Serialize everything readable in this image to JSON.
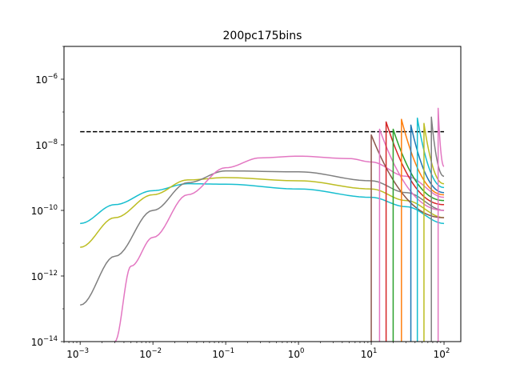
{
  "chart_data": {
    "type": "line",
    "title": "200pc175bins",
    "xlabel": "",
    "ylabel": "",
    "xscale": "log",
    "yscale": "log",
    "xlim": [
      0.0006,
      170
    ],
    "ylim": [
      1e-14,
      1e-05
    ],
    "grid": false,
    "legend": "none",
    "x_ticks": [
      {
        "value": 0.001,
        "base": "10",
        "exp": "−3"
      },
      {
        "value": 0.01,
        "base": "10",
        "exp": "−2"
      },
      {
        "value": 0.1,
        "base": "10",
        "exp": "−1"
      },
      {
        "value": 1,
        "base": "10",
        "exp": "0"
      },
      {
        "value": 10,
        "base": "10",
        "exp": "1"
      },
      {
        "value": 100,
        "base": "10",
        "exp": "2"
      }
    ],
    "y_ticks": [
      {
        "value": 1e-14,
        "base": "10",
        "exp": "−14"
      },
      {
        "value": 1e-12,
        "base": "10",
        "exp": "−12"
      },
      {
        "value": 1e-10,
        "base": "10",
        "exp": "−10"
      },
      {
        "value": 1e-08,
        "base": "10",
        "exp": "−8"
      },
      {
        "value": 1e-06,
        "base": "10",
        "exp": "−6"
      }
    ],
    "reference_line": {
      "style": "dashed",
      "color": "#000000",
      "x": [
        0.001,
        100
      ],
      "y": [
        2.5e-08,
        2.5e-08
      ]
    },
    "series": [
      {
        "color": "#17becf",
        "points": [
          [
            0.001,
            4e-11
          ],
          [
            0.003,
            1.5e-10
          ],
          [
            0.01,
            4e-10
          ],
          [
            0.03,
            6.5e-10
          ],
          [
            0.1,
            6.3e-10
          ],
          [
            1,
            4.5e-10
          ],
          [
            10,
            2.5e-10
          ],
          [
            30,
            1.3e-10
          ],
          [
            100,
            4e-11
          ]
        ]
      },
      {
        "color": "#bcbd22",
        "points": [
          [
            0.001,
            7.5e-12
          ],
          [
            0.003,
            6e-11
          ],
          [
            0.01,
            3e-10
          ],
          [
            0.03,
            8.5e-10
          ],
          [
            0.1,
            1e-09
          ],
          [
            1,
            8e-10
          ],
          [
            10,
            4.5e-10
          ],
          [
            30,
            2e-10
          ],
          [
            100,
            6e-11
          ]
        ]
      },
      {
        "color": "#7f7f7f",
        "points": [
          [
            0.001,
            1.3e-13
          ],
          [
            0.003,
            4e-12
          ],
          [
            0.01,
            1e-10
          ],
          [
            0.03,
            7e-10
          ],
          [
            0.1,
            1.6e-09
          ],
          [
            1,
            1.5e-09
          ],
          [
            10,
            8e-10
          ],
          [
            30,
            3.5e-10
          ],
          [
            100,
            1e-10
          ]
        ]
      },
      {
        "color": "#e377c2",
        "points": [
          [
            0.003,
            1e-14
          ],
          [
            0.005,
            2e-12
          ],
          [
            0.01,
            1.5e-11
          ],
          [
            0.03,
            3e-10
          ],
          [
            0.1,
            2e-09
          ],
          [
            0.3,
            4e-09
          ],
          [
            1,
            4.5e-09
          ],
          [
            5,
            3.8e-09
          ],
          [
            10,
            3e-09
          ],
          [
            30,
            1.1e-09
          ],
          [
            100,
            2.5e-10
          ]
        ]
      }
    ],
    "spikes": [
      {
        "color": "#8c564b",
        "x": 10,
        "peak": 2e-08,
        "end": 6e-11
      },
      {
        "color": "#e377c2",
        "x": 13,
        "peak": 3e-08,
        "end": 1e-10
      },
      {
        "color": "#d62728",
        "x": 16,
        "peak": 5e-08,
        "end": 1.5e-10
      },
      {
        "color": "#2ca02c",
        "x": 20,
        "peak": 3e-08,
        "end": 2e-10
      },
      {
        "color": "#ff7f0e",
        "x": 26,
        "peak": 6e-08,
        "end": 3e-10
      },
      {
        "color": "#1f77b4",
        "x": 35,
        "peak": 4e-08,
        "end": 3.5e-10
      },
      {
        "color": "#17becf",
        "x": 43,
        "peak": 6.5e-08,
        "end": 5e-10
      },
      {
        "color": "#bcbd22",
        "x": 53,
        "peak": 4.5e-08,
        "end": 6.5e-10
      },
      {
        "color": "#7f7f7f",
        "x": 67,
        "peak": 7e-08,
        "end": 1.1e-09
      },
      {
        "color": "#e377c2",
        "x": 83,
        "peak": 1.3e-07,
        "end": 2.2e-09
      }
    ]
  }
}
